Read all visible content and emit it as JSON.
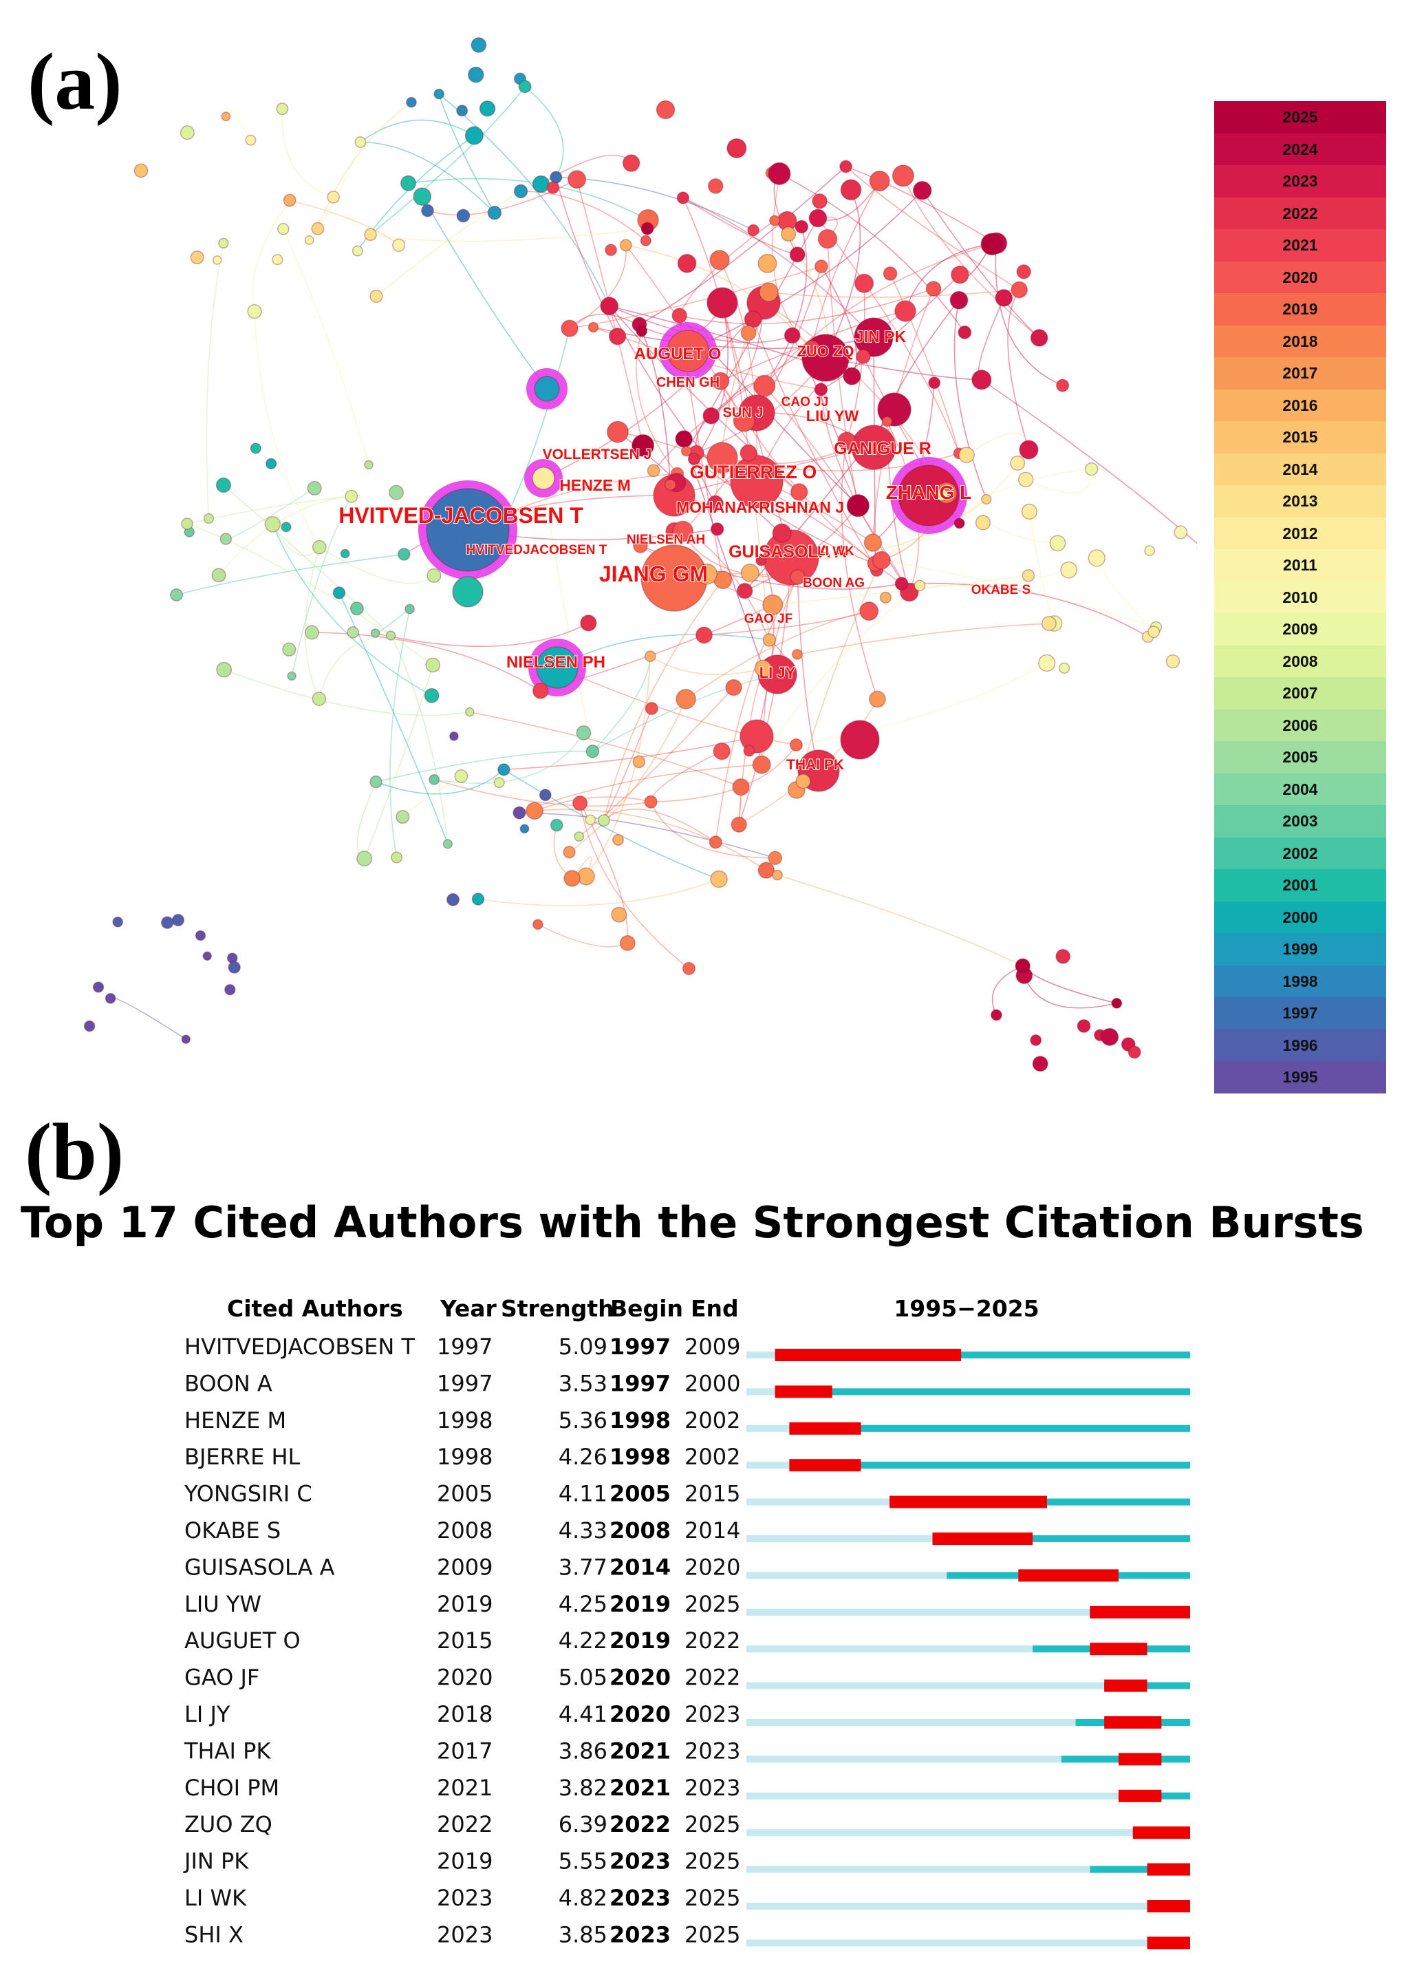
{
  "panel_a": {
    "label": "(a)",
    "legend_years": [
      "2025",
      "2024",
      "2023",
      "2022",
      "2021",
      "2020",
      "2019",
      "2018",
      "2017",
      "2016",
      "2015",
      "2014",
      "2013",
      "2012",
      "2011",
      "2010",
      "2009",
      "2008",
      "2007",
      "2006",
      "2005",
      "2004",
      "2003",
      "2002",
      "2001",
      "2000",
      "1999",
      "1998",
      "1997",
      "1996",
      "1995"
    ],
    "legend_colors": [
      "#b5003c",
      "#c40b45",
      "#d61a4a",
      "#e4304c",
      "#ee4050",
      "#f55552",
      "#f76a4e",
      "#f8834f",
      "#f99958",
      "#fbb062",
      "#fcc26e",
      "#fdd47e",
      "#fde28e",
      "#fdec9d",
      "#fbf3a8",
      "#f6f7ad",
      "#eaf7a4",
      "#dcf39b",
      "#c8ec96",
      "#b4e59a",
      "#9edda0",
      "#84d6a2",
      "#67cea3",
      "#46c6a4",
      "#1fbda5",
      "#10adb2",
      "#1e9bbd",
      "#2c87bd",
      "#3c72b4",
      "#5060ad",
      "#6650a6"
    ],
    "node_labels": [
      {
        "text": "HVITVED-JACOBSEN T",
        "size": 32
      },
      {
        "text": "JIANG GM",
        "size": 32
      },
      {
        "text": "ZHANG L",
        "size": 28
      },
      {
        "text": "AUGUET O",
        "size": 24
      },
      {
        "text": "GUTIERREZ O",
        "size": 27
      },
      {
        "text": "GANIGUE R",
        "size": 25
      },
      {
        "text": "MOHANAKRISHNAN J",
        "size": 23
      },
      {
        "text": "GUISASOLA A",
        "size": 25
      },
      {
        "text": "NIELSEN PH",
        "size": 24
      },
      {
        "text": "HENZE M",
        "size": 23
      },
      {
        "text": "VOLLERTSEN J",
        "size": 21
      },
      {
        "text": "JIN PK",
        "size": 23
      },
      {
        "text": "ZUO ZQ",
        "size": 22
      },
      {
        "text": "LIU YW",
        "size": 22
      },
      {
        "text": "CHEN GH",
        "size": 20
      },
      {
        "text": "SUN J",
        "size": 20
      },
      {
        "text": "CAO JJ",
        "size": 19
      },
      {
        "text": "NIELSEN AH",
        "size": 19
      },
      {
        "text": "HVITVEDJACOBSEN T",
        "size": 19
      },
      {
        "text": "LI WK",
        "size": 19
      },
      {
        "text": "BOON AG",
        "size": 19
      },
      {
        "text": "OKABE S",
        "size": 19
      },
      {
        "text": "GAO JF",
        "size": 19
      },
      {
        "text": "LI JY",
        "size": 22
      },
      {
        "text": "THAI PK",
        "size": 21
      }
    ]
  },
  "panel_b": {
    "label": "(b)",
    "title": "Top 17 Cited Authors with the Strongest Citation Bursts",
    "headers": {
      "author": "Cited Authors",
      "year": "Year",
      "strength": "Strength",
      "begin": "Begin",
      "end": "End",
      "range": "1995−2025"
    }
  },
  "chart_data": {
    "type": "table",
    "title": "Top 17 Cited Authors with the Strongest Citation Bursts",
    "range_start": 1995,
    "range_end": 2025,
    "columns": [
      "Cited Authors",
      "Year",
      "Strength",
      "Begin",
      "End"
    ],
    "rows": [
      {
        "author": "HVITVEDJACOBSEN T",
        "year": 1997,
        "strength": "5.09",
        "begin": 1997,
        "end": 2009
      },
      {
        "author": "BOON A",
        "year": 1997,
        "strength": "3.53",
        "begin": 1997,
        "end": 2000
      },
      {
        "author": "HENZE M",
        "year": 1998,
        "strength": "5.36",
        "begin": 1998,
        "end": 2002
      },
      {
        "author": "BJERRE HL",
        "year": 1998,
        "strength": "4.26",
        "begin": 1998,
        "end": 2002
      },
      {
        "author": "YONGSIRI C",
        "year": 2005,
        "strength": "4.11",
        "begin": 2005,
        "end": 2015
      },
      {
        "author": "OKABE S",
        "year": 2008,
        "strength": "4.33",
        "begin": 2008,
        "end": 2014
      },
      {
        "author": "GUISASOLA A",
        "year": 2009,
        "strength": "3.77",
        "begin": 2014,
        "end": 2020
      },
      {
        "author": "LIU YW",
        "year": 2019,
        "strength": "4.25",
        "begin": 2019,
        "end": 2025
      },
      {
        "author": "AUGUET O",
        "year": 2015,
        "strength": "4.22",
        "begin": 2019,
        "end": 2022
      },
      {
        "author": "GAO JF",
        "year": 2020,
        "strength": "5.05",
        "begin": 2020,
        "end": 2022
      },
      {
        "author": "LI JY",
        "year": 2018,
        "strength": "4.41",
        "begin": 2020,
        "end": 2023
      },
      {
        "author": "THAI PK",
        "year": 2017,
        "strength": "3.86",
        "begin": 2021,
        "end": 2023
      },
      {
        "author": "CHOI PM",
        "year": 2021,
        "strength": "3.82",
        "begin": 2021,
        "end": 2023
      },
      {
        "author": "ZUO ZQ",
        "year": 2022,
        "strength": "6.39",
        "begin": 2022,
        "end": 2025
      },
      {
        "author": "JIN PK",
        "year": 2019,
        "strength": "5.55",
        "begin": 2023,
        "end": 2025
      },
      {
        "author": "LI WK",
        "year": 2023,
        "strength": "4.82",
        "begin": 2023,
        "end": 2025
      },
      {
        "author": "SHI X",
        "year": 2023,
        "strength": "3.85",
        "begin": 2023,
        "end": 2025
      }
    ],
    "colors": {
      "burst": "#ee0000",
      "active": "#1fbcc4",
      "inactive": "#c5e9ee"
    }
  }
}
